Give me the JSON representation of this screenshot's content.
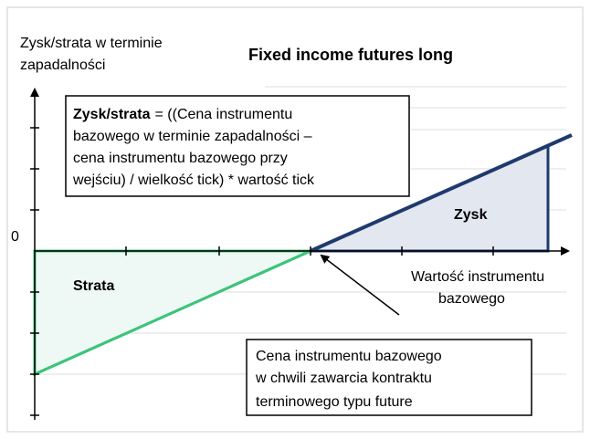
{
  "axis_label": [
    "Zysk/strata w terminie",
    "zapadalności"
  ],
  "title": "Fixed income futures long",
  "formula": {
    "bold": "Zysk/strata",
    "lines": [
      "= ((Cena instrumentu",
      "bazowego w terminie zapadalności –",
      "cena instrumentu bazowego przy",
      "wejściu) / wielkość tick) * wartość tick"
    ]
  },
  "zero_label": "0",
  "profit_label": "Zysk",
  "loss_label": "Strata",
  "x_axis_label": [
    "Wartość instrumentu",
    "bazowego"
  ],
  "entry_note": [
    "Cena instrumentu bazowego",
    "w chwili zawarcia kontraktu",
    "terminowego typu future"
  ]
}
